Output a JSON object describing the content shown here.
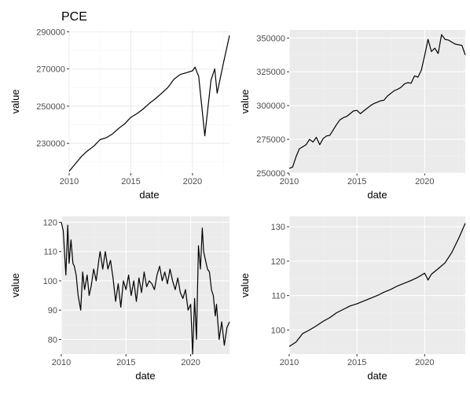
{
  "chart_data": [
    {
      "type": "line",
      "title": "PCE",
      "xlabel": "date",
      "ylabel": "value",
      "theme": "minimal",
      "xlim": [
        2010.0,
        2023.0
      ],
      "ylim": [
        214000,
        291000
      ],
      "xticks": [
        2010,
        2015,
        2020
      ],
      "yticks": [
        230000,
        250000,
        270000,
        290000
      ],
      "x": [
        2010.0,
        2010.5,
        2011.0,
        2011.5,
        2012.0,
        2012.5,
        2013.0,
        2013.5,
        2014.0,
        2014.5,
        2015.0,
        2015.5,
        2016.0,
        2016.5,
        2017.0,
        2017.5,
        2018.0,
        2018.5,
        2019.0,
        2019.5,
        2020.0,
        2020.2,
        2020.5,
        2021.0,
        2021.3,
        2021.5,
        2021.8,
        2022.0,
        2022.5,
        2023.0
      ],
      "values": [
        215000,
        219000,
        223000,
        226000,
        228500,
        232000,
        233000,
        235000,
        238000,
        240500,
        244000,
        246000,
        248500,
        251500,
        254000,
        257000,
        260000,
        264500,
        267000,
        268000,
        269000,
        271000,
        266000,
        234000,
        252000,
        264000,
        270000,
        257000,
        273000,
        288000
      ]
    },
    {
      "type": "line",
      "title": "",
      "xlabel": "date",
      "ylabel": "value",
      "theme": "grey",
      "xlim": [
        2010.0,
        2023.0
      ],
      "ylim": [
        250000,
        356000
      ],
      "xticks": [
        2010,
        2015,
        2020
      ],
      "yticks": [
        250000,
        275000,
        300000,
        325000,
        350000
      ],
      "x": [
        2010.0,
        2010.25,
        2010.5,
        2010.75,
        2011.0,
        2011.25,
        2011.5,
        2011.75,
        2012.0,
        2012.25,
        2012.5,
        2012.75,
        2013.0,
        2013.25,
        2013.5,
        2013.75,
        2014.0,
        2014.25,
        2014.5,
        2014.75,
        2015.0,
        2015.25,
        2015.5,
        2015.75,
        2016.0,
        2016.25,
        2016.5,
        2016.75,
        2017.0,
        2017.25,
        2017.5,
        2017.75,
        2018.0,
        2018.25,
        2018.5,
        2018.75,
        2019.0,
        2019.25,
        2019.5,
        2019.75,
        2020.0,
        2020.25,
        2020.5,
        2020.75,
        2021.0,
        2021.25,
        2021.5,
        2021.75,
        2022.0,
        2022.25,
        2022.5,
        2022.75,
        2023.0
      ],
      "values": [
        253500,
        254500,
        262000,
        268000,
        269500,
        271000,
        275000,
        273000,
        276500,
        271000,
        275500,
        277500,
        278000,
        282000,
        286000,
        289500,
        291000,
        292000,
        294000,
        296000,
        296500,
        294000,
        296000,
        298000,
        300000,
        301500,
        302500,
        303500,
        304000,
        307000,
        309000,
        311000,
        312000,
        313500,
        316000,
        317000,
        316500,
        322000,
        321000,
        326000,
        337000,
        349000,
        340000,
        342500,
        338500,
        352500,
        349000,
        348500,
        347000,
        345500,
        345000,
        344500,
        337500
      ]
    },
    {
      "type": "line",
      "title": "",
      "xlabel": "date",
      "ylabel": "value",
      "theme": "grey",
      "xlim": [
        2010.0,
        2023.0
      ],
      "ylim": [
        75,
        122
      ],
      "xticks": [
        2010,
        2015,
        2020
      ],
      "yticks": [
        80,
        90,
        100,
        110,
        120
      ],
      "x": [
        2010.0,
        2010.15,
        2010.35,
        2010.5,
        2010.6,
        2010.75,
        2010.9,
        2011.0,
        2011.15,
        2011.3,
        2011.5,
        2011.65,
        2011.8,
        2012.0,
        2012.15,
        2012.3,
        2012.5,
        2012.7,
        2012.9,
        2013.0,
        2013.2,
        2013.4,
        2013.6,
        2013.8,
        2014.0,
        2014.2,
        2014.4,
        2014.6,
        2014.8,
        2015.0,
        2015.2,
        2015.4,
        2015.6,
        2015.8,
        2016.0,
        2016.2,
        2016.4,
        2016.6,
        2016.8,
        2017.0,
        2017.2,
        2017.4,
        2017.6,
        2017.8,
        2018.0,
        2018.2,
        2018.4,
        2018.6,
        2018.8,
        2019.0,
        2019.2,
        2019.4,
        2019.6,
        2019.8,
        2020.0,
        2020.15,
        2020.3,
        2020.45,
        2020.6,
        2020.75,
        2020.9,
        2021.0,
        2021.15,
        2021.3,
        2021.45,
        2021.6,
        2021.75,
        2021.9,
        2022.0,
        2022.2,
        2022.4,
        2022.6,
        2022.8,
        2023.0
      ],
      "values": [
        120,
        117,
        102,
        119,
        106,
        114,
        106,
        105,
        102,
        95,
        90,
        103,
        97,
        102,
        95,
        98,
        104,
        100,
        107,
        110,
        104,
        110,
        104,
        107,
        101,
        93,
        99,
        91,
        100,
        97,
        102,
        95,
        100,
        93,
        101,
        96,
        103,
        98,
        100,
        99,
        97,
        102,
        105,
        100,
        103,
        99,
        104,
        100,
        97,
        101,
        96,
        94,
        97,
        90,
        92,
        75,
        94,
        80,
        112,
        104,
        118,
        110,
        107,
        104,
        103,
        97,
        95,
        88,
        92,
        80,
        86,
        78,
        84,
        86
      ]
    },
    {
      "type": "line",
      "title": "",
      "xlabel": "date",
      "ylabel": "value",
      "theme": "grey",
      "xlim": [
        2010.0,
        2023.0
      ],
      "ylim": [
        93,
        133
      ],
      "xticks": [
        2010,
        2015,
        2020
      ],
      "yticks": [
        100,
        110,
        120,
        130
      ],
      "x": [
        2010.0,
        2010.5,
        2011.0,
        2011.5,
        2012.0,
        2012.5,
        2013.0,
        2013.5,
        2014.0,
        2014.5,
        2015.0,
        2015.5,
        2016.0,
        2016.5,
        2017.0,
        2017.5,
        2018.0,
        2018.5,
        2019.0,
        2019.5,
        2020.0,
        2020.25,
        2020.5,
        2021.0,
        2021.5,
        2022.0,
        2022.5,
        2023.0
      ],
      "values": [
        95.2,
        96.5,
        99.0,
        100.0,
        101.2,
        102.5,
        103.6,
        105.0,
        106.0,
        107.0,
        107.6,
        108.4,
        109.2,
        110.0,
        111.0,
        111.8,
        112.8,
        113.6,
        114.4,
        115.3,
        116.5,
        114.5,
        116.2,
        117.8,
        119.5,
        122.5,
        126.5,
        131.0
      ]
    }
  ]
}
